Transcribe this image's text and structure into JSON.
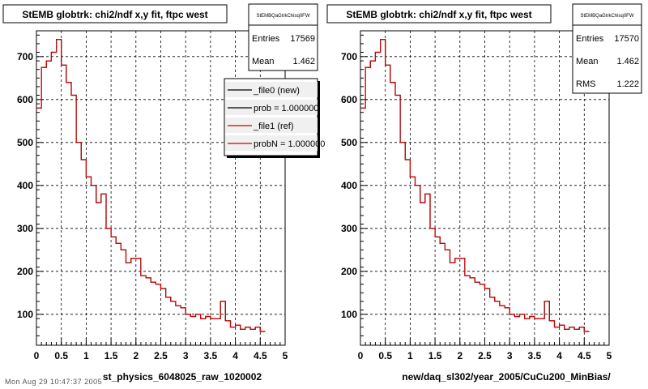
{
  "panels": [
    {
      "title": "StEMB globtrk: chi2/ndf x,y fit, ftpc west",
      "stats": {
        "name": "StEMBQaGtrkChisq0FW",
        "rows": [
          {
            "label": "Entries",
            "value": "17569"
          },
          {
            "label": "Mean",
            "value": "1.462"
          }
        ]
      },
      "legend": [
        {
          "label": "_file0 (new)",
          "color": "#000000"
        },
        {
          "label": "prob = 1.000000",
          "color": "#000000"
        },
        {
          "label": "_file1 (ref)",
          "color": "#cc0000"
        },
        {
          "label": "probN = 1.000000",
          "color": "#cc0000"
        }
      ],
      "xlabel": "st_physics_6048025_raw_1020002"
    },
    {
      "title": "StEMB globtrk: chi2/ndf x,y fit, ftpc west",
      "stats": {
        "name": "StEMBQaGtrkChisq0FW",
        "rows": [
          {
            "label": "Entries",
            "value": "17570"
          },
          {
            "label": "Mean",
            "value": "1.462"
          },
          {
            "label": "RMS",
            "value": "1.222"
          }
        ]
      },
      "legend": [],
      "xlabel": "new/daq_sl302/year_2005/CuCu200_MinBias/"
    }
  ],
  "footer_text": "Mon Aug 29 10:47:37 2005",
  "chart_data": {
    "type": "step",
    "xlim": [
      0,
      5
    ],
    "ylim": [
      28,
      760
    ],
    "x_ticks": [
      "0",
      "0.5",
      "1",
      "1.5",
      "2",
      "2.5",
      "3",
      "3.5",
      "4",
      "4.5",
      "5"
    ],
    "y_ticks": [
      100,
      200,
      300,
      400,
      500,
      600,
      700
    ],
    "grid": true,
    "bin_width": 0.1,
    "values": [
      580,
      675,
      690,
      710,
      740,
      680,
      640,
      610,
      500,
      460,
      420,
      400,
      360,
      380,
      300,
      280,
      265,
      250,
      220,
      230,
      230,
      190,
      185,
      175,
      170,
      160,
      140,
      130,
      120,
      115,
      100,
      95,
      100,
      90,
      95,
      90,
      90,
      130,
      85,
      70,
      75,
      65,
      70,
      65,
      70,
      60
    ],
    "series": [
      {
        "name": "_file0 (new)",
        "color": "#000000"
      },
      {
        "name": "_file1 (ref)",
        "color": "#cc0000"
      }
    ]
  }
}
